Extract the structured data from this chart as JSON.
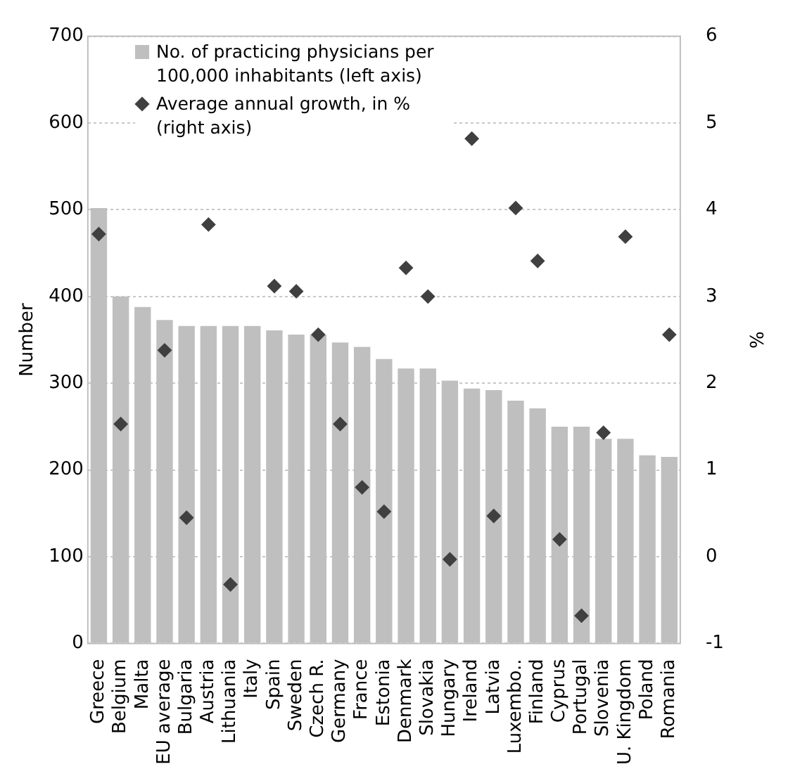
{
  "chart_data": {
    "type": "bar",
    "categories": [
      "Greece",
      "Belgium",
      "Malta",
      "EU average",
      "Bulgaria",
      "Austria",
      "Lithuania",
      "Italy",
      "Spain",
      "Sweden",
      "Czech R.",
      "Germany",
      "France",
      "Estonia",
      "Denmark",
      "Slovakia",
      "Hungary",
      "Ireland",
      "Latvia",
      "Luxembo..",
      "Finland",
      "Cyprus",
      "Portugal",
      "Slovenia",
      "U. Kingdom",
      "Poland",
      "Romania"
    ],
    "series": [
      {
        "name": "No. of practicing physicians per 100,000 inhabitants (left axis)",
        "color": "#bfbfbf",
        "values": [
          502,
          400,
          388,
          373,
          366,
          366,
          366,
          366,
          361,
          356,
          356,
          347,
          342,
          328,
          317,
          317,
          303,
          294,
          292,
          280,
          271,
          250,
          250,
          236,
          236,
          217,
          215
        ]
      },
      {
        "name": "Average annual growth, in % (right axis)",
        "type": "scatter",
        "axis": "y2",
        "color": "#404040",
        "marker": "diamond",
        "values": [
          3.72,
          1.53,
          null,
          2.38,
          0.45,
          3.83,
          -0.32,
          null,
          3.12,
          3.06,
          2.56,
          1.53,
          0.8,
          0.52,
          3.33,
          3.0,
          -0.03,
          4.82,
          0.47,
          4.02,
          3.41,
          0.2,
          -0.68,
          1.43,
          3.69,
          null,
          2.56
        ]
      }
    ],
    "ylabel": "Number",
    "y2label": "%",
    "ylim": [
      0,
      700
    ],
    "yticks": [
      0,
      100,
      200,
      300,
      400,
      500,
      600,
      700
    ],
    "y2lim": [
      -1,
      6
    ],
    "y2ticks": [
      -1,
      0,
      1,
      2,
      3,
      4,
      5,
      6
    ],
    "grid": "y",
    "legend": "top left"
  }
}
